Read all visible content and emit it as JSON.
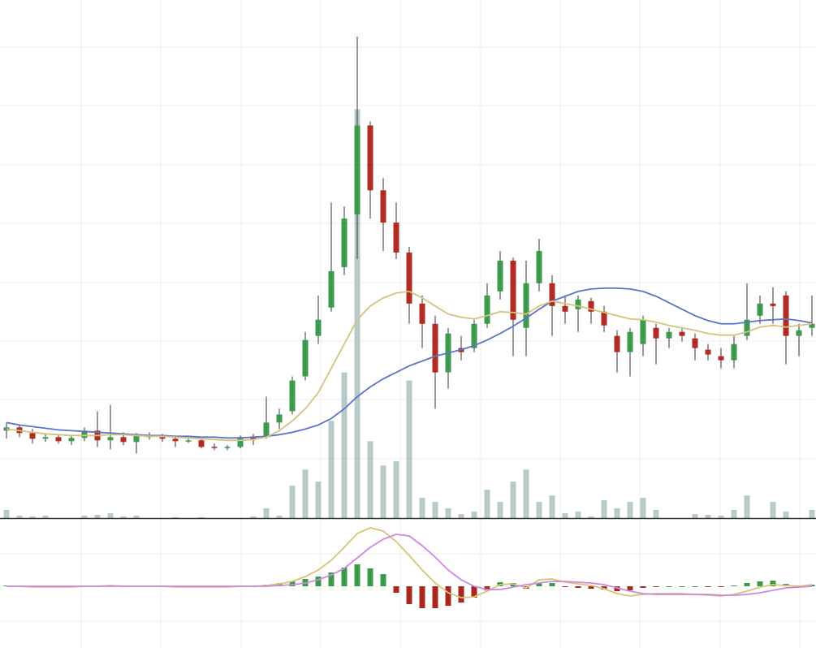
{
  "chart_data": [
    {
      "type": "candlestick",
      "up_color": "#3d9a4e",
      "down_color": "#b22a22",
      "volume_color": "#b8c9c9",
      "ylim": [
        0,
        640
      ],
      "vlim": [
        0,
        640
      ],
      "grid": true,
      "open": [
        108,
        112,
        105,
        98,
        100,
        95,
        99,
        108,
        96,
        100,
        94,
        102,
        100,
        98,
        95,
        96,
        88,
        87,
        88,
        100,
        100,
        118,
        132,
        175,
        225,
        260,
        310,
        375,
        485,
        405,
        365,
        328,
        265,
        240,
        180,
        210,
        210,
        240,
        280,
        318,
        235,
        290,
        290,
        262,
        258,
        268,
        255,
        225,
        205,
        215,
        235,
        222,
        230,
        222,
        208,
        200,
        195,
        225,
        250,
        265,
        275,
        225,
        235
      ],
      "high": [
        118,
        115,
        110,
        104,
        104,
        102,
        112,
        132,
        140,
        106,
        105,
        106,
        104,
        102,
        98,
        98,
        92,
        90,
        102,
        104,
        150,
        135,
        175,
        230,
        275,
        390,
        385,
        595,
        490,
        420,
        390,
        335,
        275,
        250,
        235,
        225,
        245,
        290,
        330,
        322,
        318,
        345,
        300,
        275,
        275,
        272,
        262,
        232,
        235,
        250,
        240,
        235,
        234,
        228,
        215,
        210,
        225,
        290,
        275,
        285,
        280,
        240,
        275
      ],
      "low": [
        98,
        100,
        92,
        94,
        92,
        90,
        95,
        88,
        85,
        90,
        80,
        97,
        94,
        88,
        93,
        86,
        84,
        84,
        86,
        90,
        98,
        110,
        128,
        170,
        215,
        255,
        300,
        320,
        370,
        330,
        320,
        240,
        210,
        135,
        160,
        195,
        205,
        235,
        270,
        200,
        200,
        280,
        225,
        240,
        230,
        240,
        230,
        180,
        175,
        200,
        190,
        210,
        218,
        195,
        195,
        185,
        185,
        220,
        240,
        240,
        190,
        200,
        225
      ],
      "close": [
        112,
        105,
        98,
        100,
        95,
        99,
        108,
        96,
        100,
        94,
        102,
        100,
        98,
        95,
        96,
        88,
        87,
        88,
        100,
        97,
        118,
        128,
        170,
        220,
        245,
        305,
        370,
        485,
        405,
        365,
        328,
        265,
        240,
        180,
        228,
        205,
        240,
        275,
        318,
        245,
        290,
        330,
        262,
        255,
        270,
        255,
        238,
        205,
        230,
        245,
        222,
        230,
        225,
        210,
        202,
        195,
        215,
        245,
        265,
        262,
        225,
        232,
        240
      ],
      "volume": [
        10,
        3,
        2,
        3,
        0,
        0,
        3,
        4,
        6,
        2,
        3,
        0,
        0,
        1,
        0,
        1,
        0,
        0,
        0,
        2,
        12,
        3,
        40,
        60,
        45,
        120,
        180,
        505,
        95,
        65,
        70,
        170,
        25,
        20,
        12,
        5,
        8,
        35,
        20,
        45,
        60,
        20,
        28,
        6,
        8,
        2,
        22,
        12,
        20,
        25,
        10,
        0,
        0,
        5,
        4,
        3,
        10,
        28,
        0,
        20,
        8,
        0,
        10
      ],
      "lines": [
        {
          "color": "#5b73c8",
          "values": [
            118,
            115,
            113,
            111,
            109,
            108,
            107,
            106,
            105,
            104,
            103,
            102,
            102,
            101,
            101,
            100,
            100,
            99,
            99,
            100,
            101,
            103,
            106,
            110,
            115,
            123,
            135,
            150,
            162,
            172,
            180,
            188,
            194,
            200,
            204,
            208,
            213,
            220,
            228,
            237,
            247,
            258,
            268,
            274,
            280,
            283,
            284,
            284,
            283,
            280,
            274,
            266,
            258,
            250,
            244,
            240,
            240,
            242,
            244,
            245,
            246,
            244,
            241
          ]
        },
        {
          "color": "#d4c27e",
          "values": [
            110,
            108,
            106,
            104,
            103,
            102,
            102,
            102,
            103,
            103,
            102,
            101,
            101,
            100,
            99,
            98,
            97,
            96,
            96,
            97,
            100,
            108,
            120,
            135,
            155,
            185,
            215,
            245,
            262,
            272,
            278,
            280,
            272,
            262,
            252,
            248,
            246,
            250,
            255,
            254,
            252,
            262,
            268,
            265,
            262,
            258,
            254,
            250,
            246,
            245,
            242,
            238,
            235,
            232,
            228,
            226,
            226,
            230,
            236,
            238,
            236,
            238,
            240
          ]
        }
      ]
    },
    {
      "type": "macd",
      "ylim": [
        -76,
        82
      ],
      "up_color": "#3a9a48",
      "down_color": "#a8281f",
      "histogram": [
        1,
        1,
        0,
        0,
        -1,
        -1,
        0,
        0,
        1,
        1,
        0,
        0,
        0,
        -1,
        -1,
        -1,
        -1,
        -1,
        0,
        0,
        2,
        4,
        6,
        9,
        12,
        17,
        23,
        27,
        22,
        15,
        -8,
        -22,
        -27,
        -27,
        -24,
        -20,
        -14,
        -5,
        5,
        4,
        -3,
        4,
        4,
        -1,
        -2,
        -3,
        -4,
        -6,
        -5,
        -2,
        -1,
        0,
        0,
        0,
        -1,
        -1,
        1,
        4,
        6,
        7,
        3,
        1,
        2
      ],
      "lines": [
        {
          "color": "#d9c27a",
          "values": [
            0,
            0,
            -1,
            -1,
            -1,
            -1,
            0,
            0,
            1,
            0,
            0,
            0,
            0,
            -1,
            -1,
            -1,
            -1,
            -1,
            0,
            0,
            1,
            3,
            6,
            12,
            20,
            32,
            48,
            65,
            72,
            68,
            55,
            38,
            20,
            4,
            -8,
            -14,
            -13,
            -6,
            2,
            3,
            -2,
            8,
            9,
            5,
            3,
            1,
            -3,
            -9,
            -12,
            -10,
            -9,
            -9,
            -9,
            -10,
            -11,
            -12,
            -10,
            -6,
            -1,
            2,
            1,
            0,
            2
          ]
        },
        {
          "color": "#cc88dd",
          "values": [
            0,
            0,
            0,
            0,
            0,
            0,
            0,
            0,
            0,
            0,
            0,
            0,
            0,
            0,
            0,
            0,
            0,
            0,
            0,
            0,
            0,
            1,
            2,
            4,
            8,
            14,
            22,
            35,
            48,
            58,
            64,
            62,
            50,
            36,
            20,
            8,
            0,
            -4,
            -4,
            -1,
            2,
            4,
            6,
            6,
            5,
            4,
            2,
            -2,
            -6,
            -9,
            -10,
            -10,
            -10,
            -10,
            -10,
            -11,
            -11,
            -10,
            -8,
            -5,
            -2,
            -1,
            0
          ]
        }
      ]
    }
  ]
}
